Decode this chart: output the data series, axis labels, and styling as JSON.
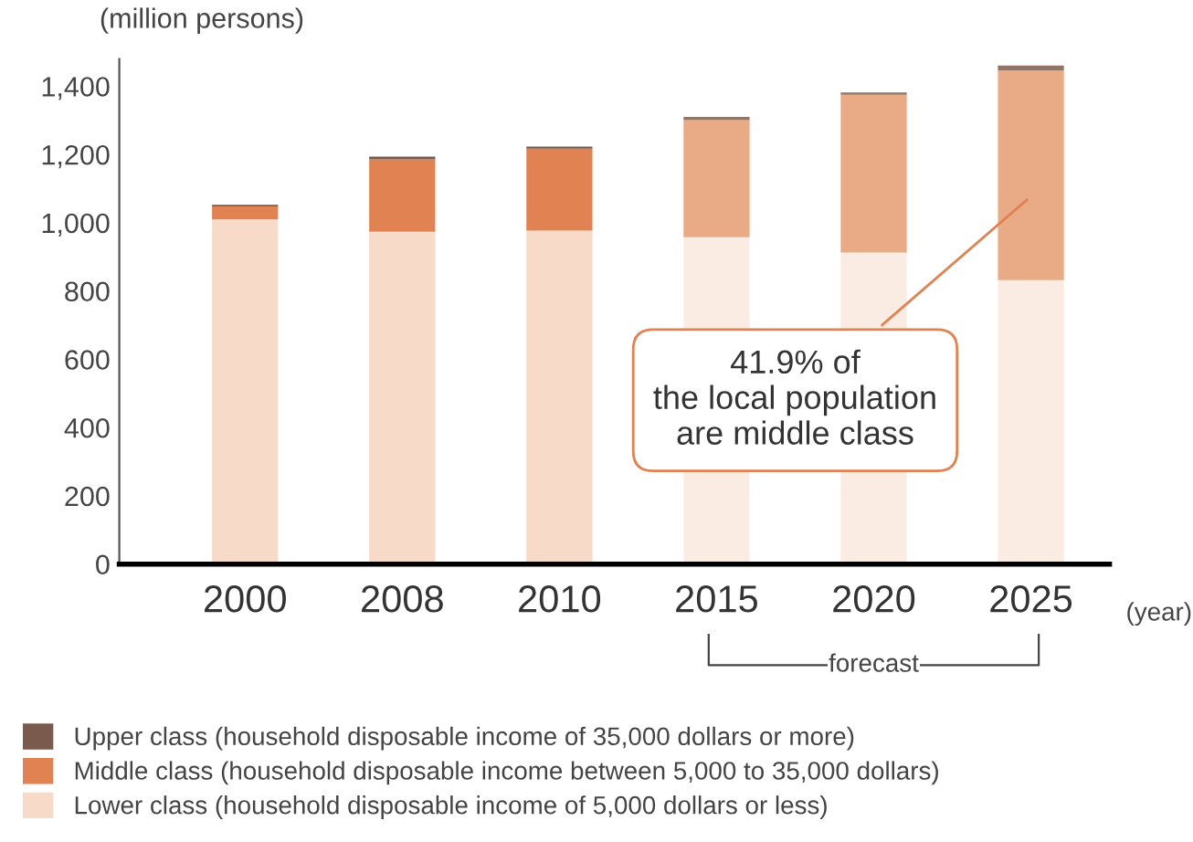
{
  "chart_data": {
    "type": "bar",
    "stacked": true,
    "ylabel": "(million persons)",
    "xlabel": "(year)",
    "categories": [
      "2000",
      "2008",
      "2010",
      "2015",
      "2020",
      "2025"
    ],
    "series": [
      {
        "name": "Lower class (household disposable income of 5,000 dollars or less)",
        "color": "#f7dac8",
        "colors": [
          "#f7dac8",
          "#f7dac8",
          "#f7dac8",
          "#fbece3",
          "#fbece3",
          "#fbece3"
        ],
        "values": [
          1010,
          974,
          977,
          958,
          913,
          832
        ]
      },
      {
        "name": "Middle class (household disposable income between 5,000 to 35,000 dollars)",
        "color": "#e08252",
        "colors": [
          "#e08252",
          "#e08252",
          "#e08252",
          "#e9aa86",
          "#e9aa86",
          "#e9aa86"
        ],
        "values": [
          38,
          212,
          240,
          343,
          462,
          614
        ]
      },
      {
        "name": "Upper class (household disposable income of 35,000 dollars or more)",
        "color": "#7a5a4c",
        "colors": [
          "#7a5a4c",
          "#7a5a4c",
          "#7a5a4c",
          "#8f7468",
          "#8f7468",
          "#8f7468"
        ],
        "values": [
          5,
          8,
          6,
          9,
          7,
          15
        ]
      }
    ],
    "ylim": [
      0,
      1480
    ],
    "yticks": [
      0,
      {
        "value": 200,
        "label": "200"
      },
      {
        "value": 400,
        "label": "400"
      },
      {
        "value": 600,
        "label": "600"
      },
      {
        "value": 800,
        "label": "800"
      },
      {
        "value": 1000,
        "label": "1,000"
      },
      {
        "value": 1200,
        "label": "1,200"
      },
      {
        "value": 1400,
        "label": "1,400"
      }
    ],
    "grid": false,
    "legend": "bottom",
    "annotations": [
      "41.9% of\nthe local population\nare middle class",
      "forecast"
    ]
  }
}
